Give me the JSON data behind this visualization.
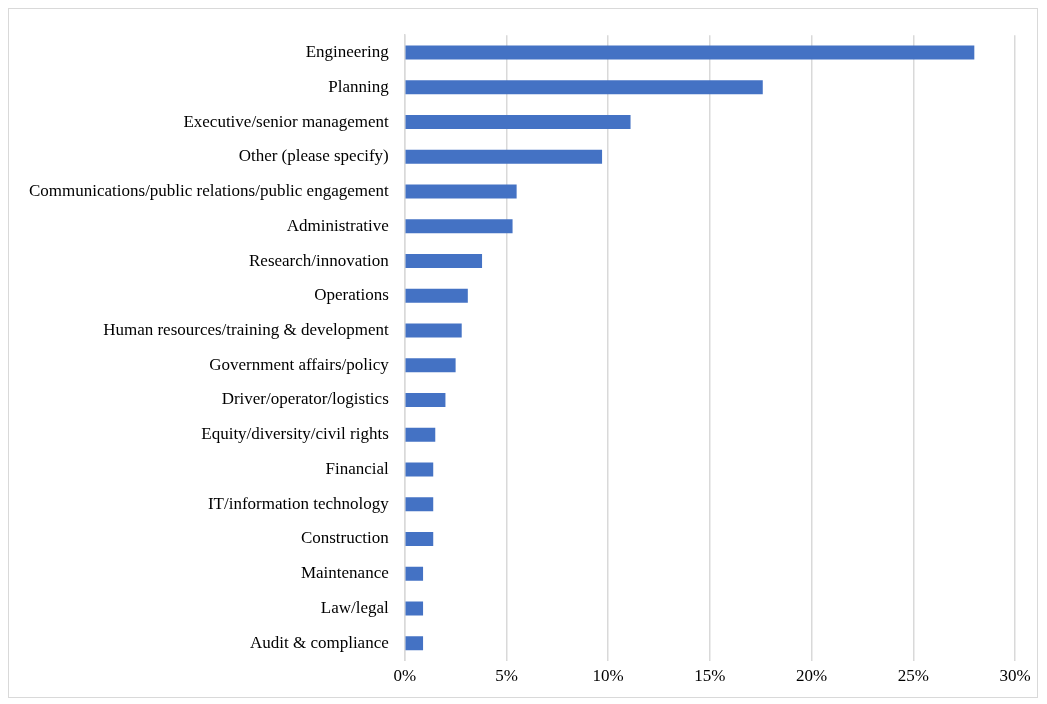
{
  "chart_data": {
    "type": "bar",
    "orientation": "horizontal",
    "categories": [
      "Engineering",
      "Planning",
      "Executive/senior management",
      "Other (please specify)",
      "Communications/public relations/public engagement",
      "Administrative",
      "Research/innovation",
      "Operations",
      "Human resources/training & development",
      "Government affairs/policy",
      "Driver/operator/logistics",
      "Equity/diversity/civil rights",
      "Financial",
      "IT/information technology",
      "Construction",
      "Maintenance",
      "Law/legal",
      "Audit & compliance"
    ],
    "values": [
      28.0,
      17.6,
      11.1,
      9.7,
      5.5,
      5.3,
      3.8,
      3.1,
      2.8,
      2.5,
      2.0,
      1.5,
      1.4,
      1.4,
      1.4,
      0.9,
      0.9,
      0.9
    ],
    "color": "#4472c4",
    "xlim": [
      0,
      30
    ],
    "xticks": [
      {
        "value": 0,
        "label": "0%"
      },
      {
        "value": 5,
        "label": "5%"
      },
      {
        "value": 10,
        "label": "10%"
      },
      {
        "value": 15,
        "label": "15%"
      },
      {
        "value": 20,
        "label": "20%"
      },
      {
        "value": 25,
        "label": "25%"
      },
      {
        "value": 30,
        "label": "30%"
      }
    ],
    "grid": "x",
    "legend": false
  }
}
